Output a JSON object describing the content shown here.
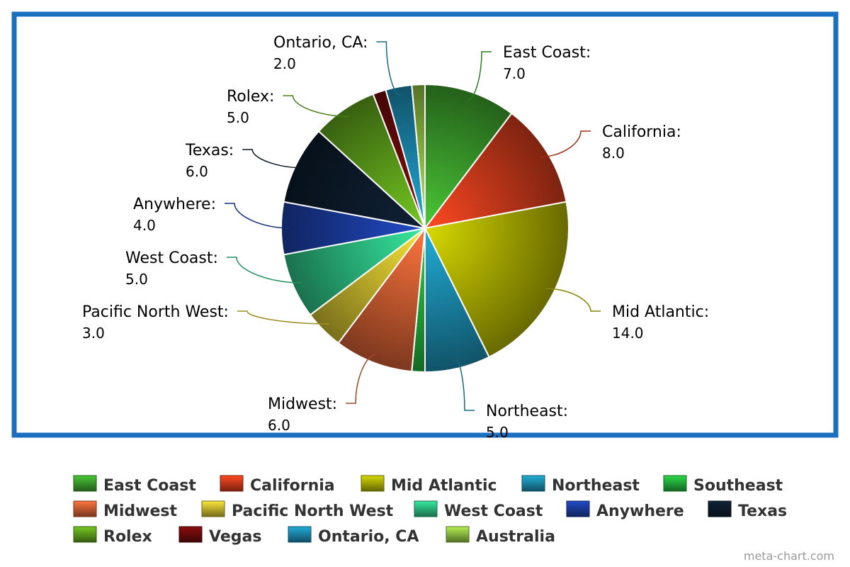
{
  "chart_data": {
    "type": "pie",
    "categories": [
      "East Coast",
      "California",
      "Mid Atlantic",
      "Northeast",
      "Southeast",
      "Midwest",
      "Pacific North West",
      "West Coast",
      "Anywhere",
      "Texas",
      "Rolex",
      "Vegas",
      "Ontario, CA",
      "Australia"
    ],
    "values": [
      7,
      8,
      14,
      5,
      1,
      6,
      3,
      5,
      4,
      6,
      5,
      1,
      2,
      1
    ],
    "value_labels": [
      "7.0",
      "8.0",
      "14.0",
      "5.0",
      null,
      "6.0",
      "3.0",
      "5.0",
      "4.0",
      "6.0",
      "5.0",
      null,
      "2.0",
      null
    ],
    "slice_labels": [
      "East Coast:",
      "California:",
      "Mid Atlantic:",
      "Northeast:",
      null,
      "Midwest:",
      "Pacific North West:",
      "West Coast:",
      "Anywhere:",
      "Texas:",
      "Rolex:",
      null,
      "Ontario, CA:",
      null
    ],
    "colors": [
      "#3a9a2a",
      "#c8381a",
      "#a6a800",
      "#1a86a6",
      "#22a838",
      "#c85a30",
      "#c2b22c",
      "#2ab47c",
      "#1a3a9a",
      "#0c1a2a",
      "#5a9a1a",
      "#6a0a0a",
      "#1a84a8",
      "#8ab840"
    ],
    "legend": true,
    "footer": "meta-chart.com"
  }
}
